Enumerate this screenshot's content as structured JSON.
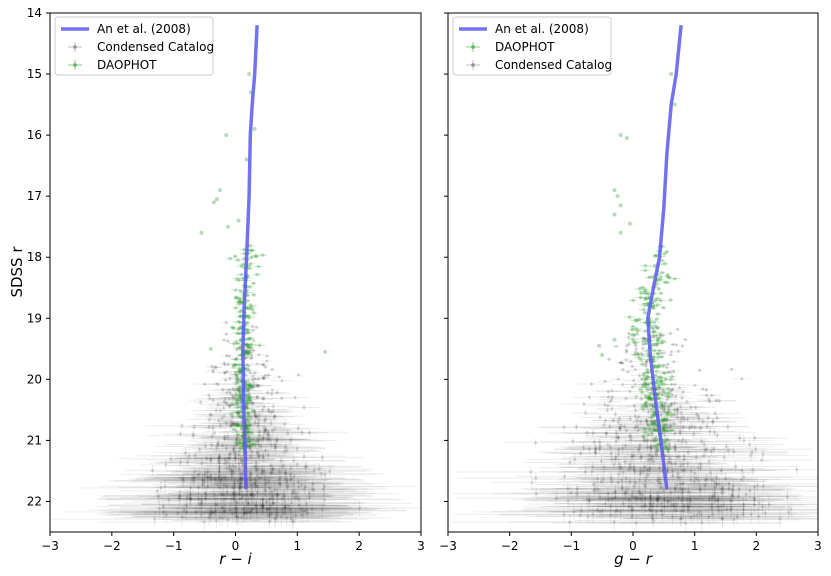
{
  "figure": {
    "y_label": "SDSS r",
    "colors": {
      "model": "#5b5bf0",
      "condensed": "#000000",
      "daophot": "#2ca02c"
    }
  },
  "chart_data": [
    {
      "type": "scatter",
      "panel": "left",
      "xlabel": "r − i",
      "ylabel": "SDSS r",
      "xlim": [
        -3,
        3
      ],
      "ylim": [
        22.5,
        14
      ],
      "y_inverted": true,
      "xticks": [
        "−3",
        "−2",
        "−1",
        "0",
        "1",
        "2",
        "3"
      ],
      "yticks": [
        "14",
        "15",
        "16",
        "17",
        "18",
        "19",
        "20",
        "21",
        "22"
      ],
      "legend_position": "top-left",
      "legend": [
        "An et al. (2008)",
        "Condensed Catalog",
        "DAOPHOT"
      ],
      "series": [
        {
          "name": "An et al. (2008)",
          "kind": "line",
          "x": [
            0.17,
            0.15,
            0.13,
            0.12,
            0.14,
            0.18,
            0.22,
            0.24,
            0.27,
            0.31,
            0.35
          ],
          "y": [
            21.8,
            21.0,
            20.3,
            19.5,
            18.8,
            18.0,
            17.0,
            16.0,
            15.5,
            15.0,
            14.2
          ]
        },
        {
          "name": "Condensed Catalog",
          "kind": "scatter",
          "description": "dense cloud with error bars",
          "x_center": 0.15,
          "x_spread": 0.35,
          "y_range": [
            19.0,
            22.3
          ]
        },
        {
          "name": "DAOPHOT",
          "kind": "scatter",
          "x_center": 0.12,
          "x_spread": 0.08,
          "y_range": [
            15.0,
            21.2
          ]
        }
      ]
    },
    {
      "type": "scatter",
      "panel": "right",
      "xlabel": "g − r",
      "ylabel": "SDSS r",
      "xlim": [
        -3,
        3
      ],
      "ylim": [
        22.5,
        14
      ],
      "y_inverted": true,
      "xticks": [
        "−3",
        "−2",
        "−1",
        "0",
        "1",
        "2",
        "3"
      ],
      "legend_position": "top-left",
      "legend": [
        "An et al. (2008)",
        "DAOPHOT",
        "Condensed Catalog"
      ],
      "series": [
        {
          "name": "An et al. (2008)",
          "kind": "line",
          "x": [
            0.55,
            0.45,
            0.36,
            0.28,
            0.24,
            0.33,
            0.43,
            0.5,
            0.55,
            0.62,
            0.7,
            0.78
          ],
          "y": [
            21.8,
            21.0,
            20.3,
            19.6,
            19.0,
            18.5,
            18.0,
            17.2,
            16.3,
            15.5,
            15.0,
            14.2
          ]
        },
        {
          "name": "DAOPHOT",
          "kind": "scatter",
          "x_center": 0.35,
          "x_spread": 0.12,
          "y_range": [
            15.0,
            21.2
          ]
        },
        {
          "name": "Condensed Catalog",
          "kind": "scatter",
          "description": "dense cloud with error bars",
          "x_center": 0.35,
          "x_spread": 0.5,
          "y_range": [
            19.0,
            22.3
          ]
        }
      ]
    }
  ]
}
